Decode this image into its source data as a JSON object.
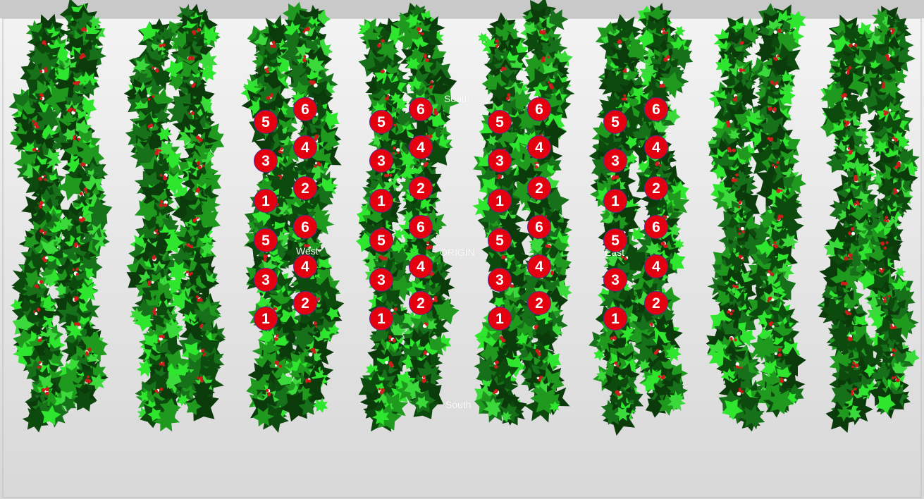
{
  "scene": {
    "labels": {
      "north": "South",
      "south": "South",
      "west": "West",
      "origin": "ORIGIN",
      "east": "East"
    },
    "colors": {
      "ground_top": "#f2f2f2",
      "ground_bottom": "#d9d9d9",
      "top_band": "#c9c9c9",
      "leaf_dark": "#0d4a0d",
      "leaf_mid": "#1f9a1f",
      "leaf_light": "#2ee62e",
      "berry": "#d21c1c",
      "marker_fill": "#e4000f",
      "marker_border": "#5a2a8a",
      "marker_text": "#ffffff"
    },
    "row_count": 8,
    "labeled_rows": [
      3,
      4,
      5,
      6
    ],
    "marker_sets": [
      {
        "left_column": [
          "5",
          "3",
          "1",
          "5",
          "3",
          "1"
        ],
        "right_column": [
          "6",
          "4",
          "2",
          "6",
          "4",
          "2"
        ]
      },
      {
        "left_column": [
          "5",
          "3",
          "1",
          "5",
          "3",
          "1"
        ],
        "right_column": [
          "6",
          "4",
          "2",
          "6",
          "4",
          "2"
        ]
      },
      {
        "left_column": [
          "5",
          "3",
          "1",
          "5",
          "3",
          "1"
        ],
        "right_column": [
          "6",
          "4",
          "2",
          "6",
          "4",
          "2"
        ]
      },
      {
        "left_column": [
          "5",
          "3",
          "1",
          "5",
          "3",
          "1"
        ],
        "right_column": [
          "6",
          "4",
          "2",
          "6",
          "4",
          "2"
        ]
      }
    ]
  }
}
